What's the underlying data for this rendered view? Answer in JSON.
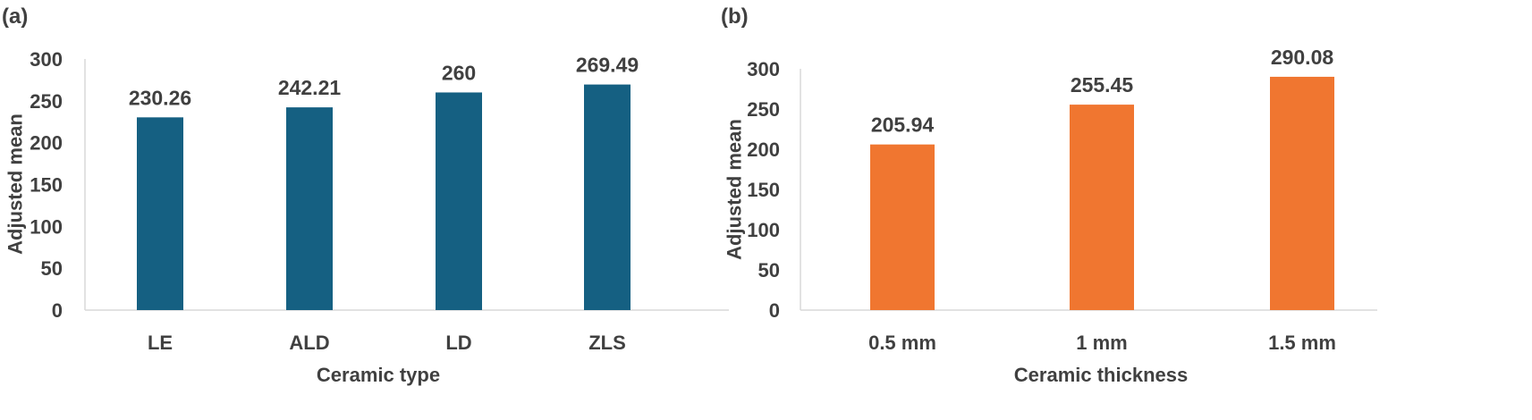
{
  "chart_data": [
    {
      "type": "bar",
      "panel_label": "(a)",
      "categories": [
        "LE",
        "ALD",
        "LD",
        "ZLS"
      ],
      "values": [
        230.26,
        242.21,
        260,
        269.49
      ],
      "value_labels": [
        "230.26",
        "242.21",
        "260",
        "269.49"
      ],
      "xlabel": "Ceramic type",
      "ylabel": "Adjusted mean",
      "ylim": [
        0,
        300
      ],
      "yticks": [
        0,
        50,
        100,
        150,
        200,
        250,
        300
      ],
      "color": "#156082",
      "grid": false,
      "legend": "none"
    },
    {
      "type": "bar",
      "panel_label": "(b)",
      "categories": [
        "0.5 mm",
        "1 mm",
        "1.5 mm"
      ],
      "values": [
        205.94,
        255.45,
        290.08
      ],
      "value_labels": [
        "205.94",
        "255.45",
        "290.08"
      ],
      "xlabel": "Ceramic thickness",
      "ylabel": "Adjusted mean",
      "ylim": [
        0,
        300
      ],
      "yticks": [
        0,
        50,
        100,
        150,
        200,
        250,
        300
      ],
      "color": "#F07630",
      "grid": false,
      "legend": "none"
    }
  ]
}
